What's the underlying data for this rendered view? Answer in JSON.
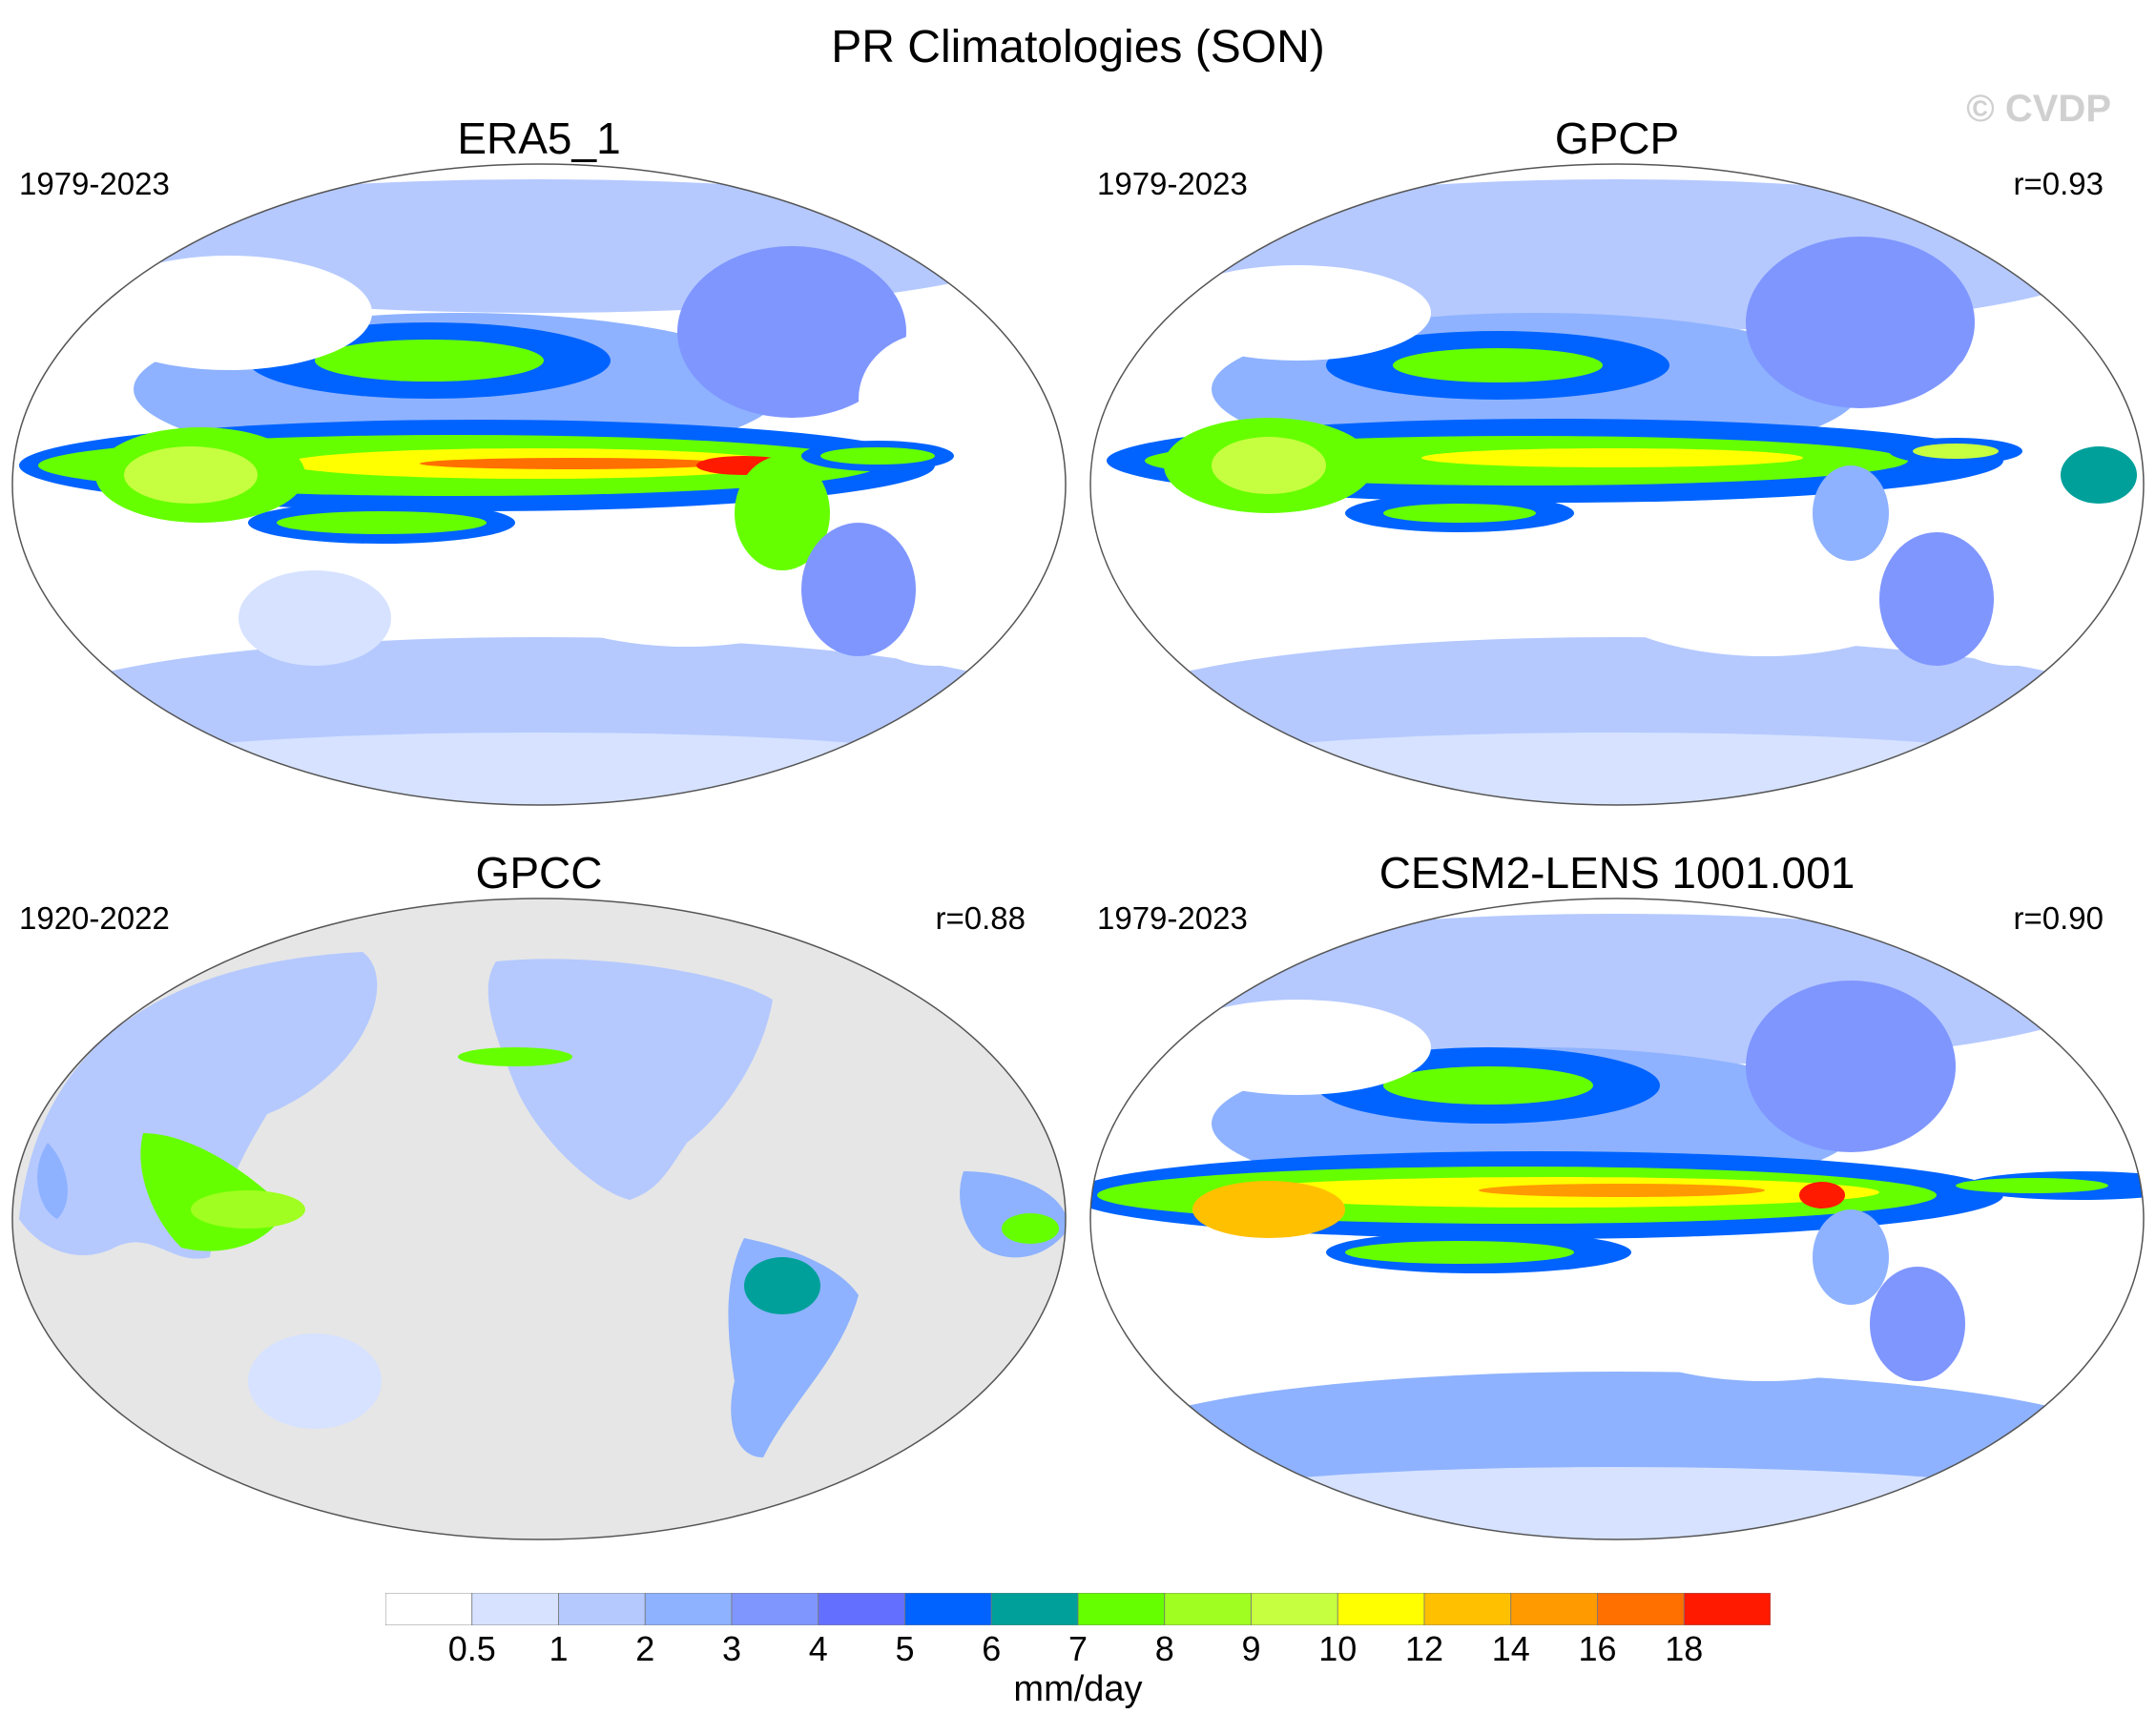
{
  "figure": {
    "title": "PR Climatologies (SON)",
    "watermark": "© CVDP",
    "units": "mm/day"
  },
  "panels": [
    {
      "title": "ERA5_1",
      "period": "1979-2023",
      "corr": "",
      "background": "#ffffff"
    },
    {
      "title": "GPCP",
      "period": "1979-2023",
      "corr": "r=0.93",
      "background": "#ffffff"
    },
    {
      "title": "GPCC",
      "period": "1920-2022",
      "corr": "r=0.88",
      "background": "#e6e6e6"
    },
    {
      "title": "CESM2-LENS 1001.001",
      "period": "1979-2023",
      "corr": "r=0.90",
      "background": "#ffffff"
    }
  ],
  "colorbar": {
    "colors": [
      "#ffffff",
      "#d6e2ff",
      "#b5c9ff",
      "#8eb2ff",
      "#7f96ff",
      "#6370ff",
      "#0063ff",
      "#00a09a",
      "#66ff00",
      "#a0ff20",
      "#c6ff40",
      "#ffff00",
      "#ffc000",
      "#ff9a00",
      "#ff7000",
      "#ff1a00"
    ],
    "labels": [
      "0.5",
      "1",
      "2",
      "3",
      "4",
      "5",
      "6",
      "7",
      "8",
      "9",
      "10",
      "12",
      "14",
      "16",
      "18"
    ]
  }
}
